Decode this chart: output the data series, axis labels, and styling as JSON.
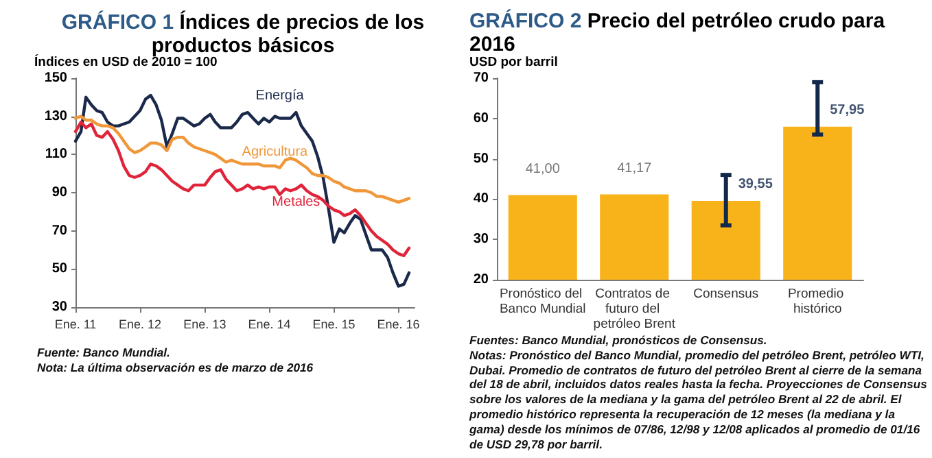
{
  "chart_data": [
    {
      "type": "line",
      "title": "GRÁFICO 1 Índices de precios de los productos básicos",
      "ylabel": "Índices en USD de 2010 = 100",
      "x": [
        "2011-01",
        "2011-02",
        "2011-03",
        "2011-04",
        "2011-05",
        "2011-06",
        "2011-07",
        "2011-08",
        "2011-09",
        "2011-10",
        "2011-11",
        "2011-12",
        "2012-01",
        "2012-02",
        "2012-03",
        "2012-04",
        "2012-05",
        "2012-06",
        "2012-07",
        "2012-08",
        "2012-09",
        "2012-10",
        "2012-11",
        "2012-12",
        "2013-01",
        "2013-02",
        "2013-03",
        "2013-04",
        "2013-05",
        "2013-06",
        "2013-07",
        "2013-08",
        "2013-09",
        "2013-10",
        "2013-11",
        "2013-12",
        "2014-01",
        "2014-02",
        "2014-03",
        "2014-04",
        "2014-05",
        "2014-06",
        "2014-07",
        "2014-08",
        "2014-09",
        "2014-10",
        "2014-11",
        "2014-12",
        "2015-01",
        "2015-02",
        "2015-03",
        "2015-04",
        "2015-05",
        "2015-06",
        "2015-07",
        "2015-08",
        "2015-09",
        "2015-10",
        "2015-11",
        "2015-12",
        "2016-01",
        "2016-02",
        "2016-03"
      ],
      "series": [
        {
          "name": "Energía",
          "color": "#1b2a4a",
          "values": [
            117,
            122,
            140,
            136,
            133,
            132,
            127,
            125,
            125,
            126,
            127,
            130,
            133,
            139,
            141,
            136,
            128,
            114,
            121,
            129,
            129,
            127,
            125,
            126,
            129,
            131,
            127,
            124,
            124,
            124,
            127,
            131,
            132,
            129,
            126,
            129,
            127,
            130,
            129,
            129,
            129,
            132,
            125,
            121,
            117,
            109,
            98,
            82,
            64,
            71,
            69,
            74,
            78,
            76,
            68,
            60,
            60,
            60,
            56,
            48,
            41,
            42,
            48
          ]
        },
        {
          "name": "Agricultura",
          "color": "#f0973a",
          "values": [
            129,
            130,
            128,
            128,
            126,
            125,
            125,
            124,
            121,
            117,
            113,
            111,
            112,
            114,
            116,
            116,
            115,
            112,
            118,
            119,
            119,
            116,
            114,
            113,
            112,
            111,
            110,
            108,
            106,
            107,
            106,
            105,
            105,
            105,
            105,
            104,
            104,
            104,
            103,
            107,
            108,
            107,
            105,
            103,
            100,
            99,
            99,
            98,
            96,
            95,
            93,
            92,
            91,
            91,
            91,
            90,
            88,
            88,
            87,
            86,
            85,
            86,
            87
          ]
        },
        {
          "name": "Metales",
          "color": "#e0243a",
          "values": [
            122,
            127,
            124,
            126,
            120,
            119,
            122,
            118,
            112,
            104,
            99,
            98,
            99,
            101,
            105,
            104,
            102,
            99,
            96,
            94,
            92,
            91,
            94,
            94,
            94,
            98,
            101,
            102,
            97,
            94,
            91,
            92,
            94,
            92,
            93,
            92,
            93,
            93,
            89,
            92,
            91,
            92,
            94,
            91,
            89,
            88,
            86,
            83,
            81,
            80,
            78,
            79,
            81,
            78,
            74,
            70,
            67,
            65,
            63,
            60,
            58,
            57,
            61
          ]
        }
      ],
      "ylim": [
        30,
        150
      ],
      "yticks": [
        30,
        50,
        70,
        90,
        110,
        130,
        150
      ],
      "xlim": [
        "2011-01",
        "2016-04"
      ],
      "xticks": [
        {
          "value": "2011-01",
          "label": "Ene. 11"
        },
        {
          "value": "2012-01",
          "label": "Ene. 12"
        },
        {
          "value": "2013-01",
          "label": "Ene. 13"
        },
        {
          "value": "2014-01",
          "label": "Ene. 14"
        },
        {
          "value": "2015-01",
          "label": "Ene. 15"
        },
        {
          "value": "2016-01",
          "label": "Ene. 16"
        }
      ],
      "grid": false,
      "legend": false,
      "marker": "none",
      "line_style": "solid",
      "annotations": [
        "Fuente: Banco Mundial.",
        "Nota: La última observación es de marzo de 2016"
      ]
    },
    {
      "type": "bar",
      "title": "GRÁFICO 2 Precio del petróleo crudo para 2016",
      "ylabel": "USD por barril",
      "categories": [
        "Pronóstico del Banco Mundial",
        "Contratos de futuro del petróleo Brent",
        "Consensus",
        "Promedio histórico"
      ],
      "values": [
        41.0,
        41.17,
        39.55,
        57.95
      ],
      "color": "#f8b31b",
      "errors": [
        null,
        null,
        [
          33.5,
          46
        ],
        [
          56,
          69
        ]
      ],
      "value_labels": [
        "41,00",
        "41,17",
        "39,55",
        "57,95"
      ],
      "ylim": [
        20,
        70
      ],
      "yticks": [
        20,
        30,
        40,
        50,
        60,
        70
      ],
      "grid": false,
      "legend": false,
      "annotations": [
        "Fuentes: Banco Mundial, pronósticos de Consensus.",
        "Notas: Pronóstico del Banco Mundial, promedio del petróleo Brent, petróleo WTI, Dubai. Promedio de contratos de futuro del petróleo Brent al cierre de la semana del 18 de abril, incluidos datos reales hasta la fecha. Proyecciones de Consensus sobre los valores de la mediana y la gama del petróleo Brent al 22 de abril. El promedio histórico representa la recuperación de 12 meses (la mediana y la gama) desde los mínimos de 07/86, 12/98 y 12/08 aplicados al promedio de 01/16 de USD 29,78 por barril."
      ]
    }
  ]
}
